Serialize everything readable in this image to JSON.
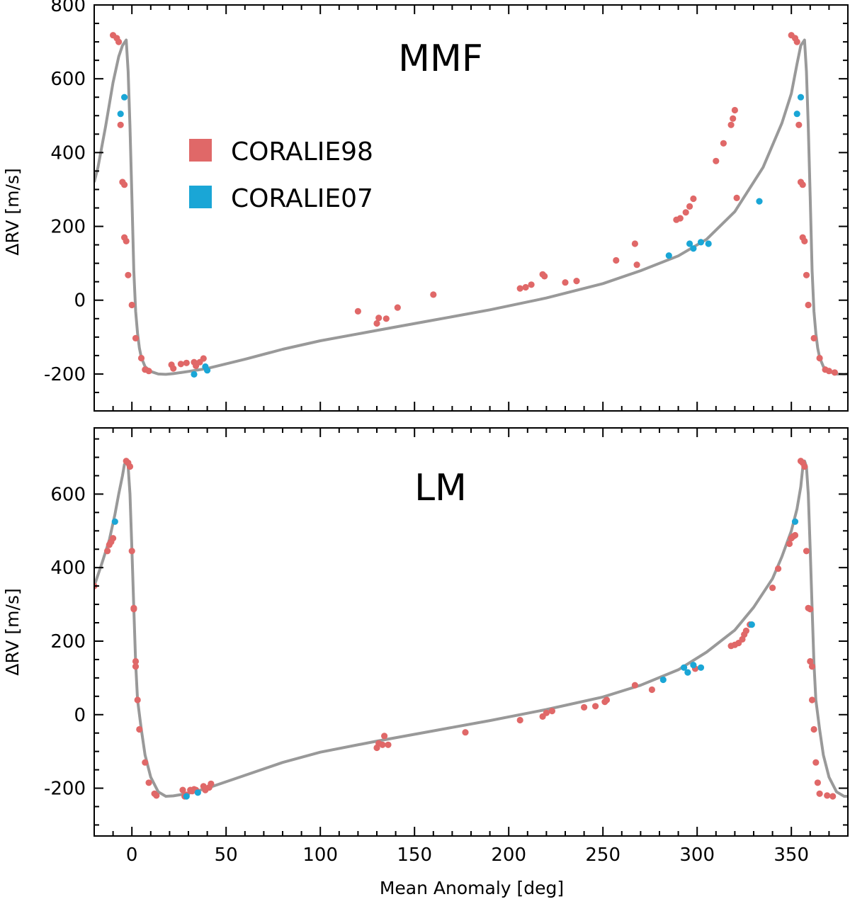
{
  "chart_data": [
    {
      "type": "scatter",
      "title": "MMF",
      "xlabel": "",
      "ylabel": "ΔRV [m/s]",
      "xlim": [
        -20,
        380
      ],
      "ylim": [
        -300,
        800
      ],
      "xticks": [
        0,
        50,
        100,
        150,
        200,
        250,
        300,
        350
      ],
      "yticks": [
        -200,
        0,
        200,
        400,
        600,
        800
      ],
      "yticklabels": [
        "-200",
        "0",
        "200",
        "400",
        "600",
        "800"
      ],
      "legend": {
        "placement": "upper-left",
        "entries": [
          {
            "name": "CORALIE98",
            "color": "#e06868"
          },
          {
            "name": "CORALIE07",
            "color": "#1aa6d6"
          }
        ]
      },
      "series": [
        {
          "name": "model",
          "kind": "line",
          "color": "#999999",
          "x": [
            -20,
            -18,
            -14,
            -10,
            -7,
            -5,
            -3,
            -2,
            -1,
            0,
            1,
            2,
            3,
            4,
            5,
            7,
            10,
            14,
            18,
            22,
            30,
            40,
            60,
            80,
            100,
            130,
            160,
            190,
            220,
            250,
            270,
            290,
            305,
            320,
            335,
            345,
            350,
            353,
            355,
            357,
            358,
            359,
            360,
            361,
            362,
            363,
            364,
            365,
            367,
            370,
            374,
            378,
            380
          ],
          "y": [
            320,
            360,
            470,
            590,
            660,
            690,
            705,
            620,
            470,
            280,
            80,
            -30,
            -90,
            -130,
            -155,
            -180,
            -193,
            -200,
            -201,
            -199,
            -193,
            -185,
            -160,
            -133,
            -110,
            -82,
            -54,
            -26,
            6,
            45,
            80,
            120,
            165,
            240,
            360,
            480,
            560,
            640,
            690,
            705,
            620,
            470,
            280,
            80,
            -30,
            -90,
            -130,
            -155,
            -180,
            -193,
            -200,
            -201,
            -200
          ]
        },
        {
          "name": "CORALIE98",
          "kind": "scatter",
          "color": "#e06868",
          "x": [
            -10,
            -8,
            -7,
            -6,
            -5,
            -4,
            -4,
            -3,
            -2,
            0,
            2,
            5,
            7,
            9,
            21,
            22,
            26,
            29,
            33,
            34,
            36,
            38,
            120,
            130,
            131,
            135,
            141,
            160,
            206,
            209,
            212,
            218,
            219,
            230,
            236,
            257,
            267,
            268,
            289,
            291,
            294,
            296,
            298,
            310,
            314,
            318,
            319,
            320,
            321,
            350,
            352,
            353,
            354,
            355,
            356,
            356,
            357,
            358,
            359,
            362,
            365,
            368,
            370,
            373
          ],
          "y": [
            718,
            710,
            700,
            475,
            320,
            313,
            170,
            160,
            68,
            -13,
            -103,
            -157,
            -188,
            -192,
            -175,
            -185,
            -173,
            -170,
            -168,
            -178,
            -168,
            -158,
            -30,
            -63,
            -48,
            -50,
            -20,
            15,
            32,
            35,
            42,
            70,
            65,
            48,
            52,
            108,
            153,
            96,
            218,
            222,
            238,
            254,
            275,
            377,
            425,
            475,
            492,
            515,
            277,
            718,
            710,
            700,
            475,
            320,
            313,
            170,
            160,
            68,
            -13,
            -103,
            -157,
            -188,
            -192,
            -196
          ]
        },
        {
          "name": "CORALIE07",
          "kind": "scatter",
          "color": "#1aa6d6",
          "x": [
            -6,
            -4,
            33,
            39,
            40,
            285,
            296,
            298,
            302,
            306,
            333,
            353,
            355
          ],
          "y": [
            505,
            550,
            -201,
            -180,
            -190,
            121,
            153,
            140,
            157,
            153,
            268,
            505,
            550
          ]
        }
      ]
    },
    {
      "type": "scatter",
      "title": "LM",
      "xlabel": "Mean Anomaly [deg]",
      "ylabel": "ΔRV [m/s]",
      "xlim": [
        -20,
        380
      ],
      "ylim": [
        -330,
        780
      ],
      "xticks": [
        0,
        50,
        100,
        150,
        200,
        250,
        300,
        350
      ],
      "xticklabels": [
        "0",
        "50",
        "100",
        "150",
        "200",
        "250",
        "300",
        "350"
      ],
      "yticks": [
        -200,
        0,
        200,
        400,
        600
      ],
      "yticklabels": [
        "-200",
        "0",
        "200",
        "400",
        "600"
      ],
      "series": [
        {
          "name": "model",
          "kind": "line",
          "color": "#999999",
          "x": [
            -20,
            -16,
            -12,
            -9,
            -7,
            -5,
            -4,
            -3,
            -2,
            -1,
            0,
            1,
            2,
            3,
            5,
            7,
            10,
            14,
            18,
            22,
            30,
            40,
            60,
            80,
            100,
            130,
            160,
            190,
            220,
            250,
            270,
            290,
            305,
            320,
            330,
            340,
            345,
            350,
            353,
            355,
            356,
            357,
            358,
            359,
            360,
            361,
            362,
            363,
            365,
            367,
            370,
            374,
            378,
            380
          ],
          "y": [
            350,
            410,
            475,
            545,
            600,
            650,
            680,
            690,
            675,
            600,
            450,
            290,
            140,
            40,
            -40,
            -110,
            -170,
            -210,
            -222,
            -221,
            -214,
            -200,
            -165,
            -130,
            -102,
            -72,
            -44,
            -16,
            14,
            48,
            80,
            122,
            170,
            230,
            292,
            370,
            430,
            500,
            560,
            620,
            670,
            690,
            675,
            600,
            450,
            290,
            140,
            40,
            -40,
            -110,
            -170,
            -210,
            -222,
            -222
          ]
        },
        {
          "name": "CORALIE98",
          "kind": "scatter",
          "color": "#e06868",
          "x": [
            -20,
            -13,
            -12,
            -11,
            -10,
            -3,
            -2,
            -1,
            0,
            1,
            1,
            2,
            2,
            3,
            4,
            7,
            9,
            12,
            13,
            27,
            28,
            29,
            31,
            32,
            33,
            34,
            38,
            39,
            41,
            42,
            130,
            131,
            133,
            134,
            136,
            177,
            206,
            218,
            220,
            223,
            240,
            246,
            251,
            252,
            267,
            276,
            299,
            318,
            320,
            322,
            324,
            325,
            326,
            328,
            340,
            343,
            349,
            350,
            351,
            352,
            355,
            356,
            357,
            358,
            359,
            360,
            360,
            361,
            361,
            362,
            363,
            364,
            365,
            369,
            372
          ],
          "y": [
            350,
            445,
            462,
            470,
            480,
            690,
            685,
            675,
            445,
            290,
            287,
            145,
            131,
            40,
            -40,
            -130,
            -185,
            -215,
            -220,
            -205,
            -222,
            -218,
            -205,
            -208,
            -203,
            -205,
            -195,
            -205,
            -198,
            -188,
            -90,
            -78,
            -82,
            -58,
            -82,
            -48,
            -15,
            -5,
            5,
            10,
            20,
            23,
            35,
            40,
            80,
            68,
            125,
            187,
            190,
            195,
            205,
            218,
            228,
            245,
            345,
            397,
            465,
            480,
            485,
            488,
            690,
            685,
            675,
            445,
            290,
            287,
            145,
            131,
            40,
            -40,
            -130,
            -185,
            -215,
            -220,
            -222
          ]
        },
        {
          "name": "CORALIE07",
          "kind": "scatter",
          "color": "#1aa6d6",
          "x": [
            -9,
            29,
            35,
            282,
            293,
            295,
            298,
            302,
            329,
            352
          ],
          "y": [
            525,
            -222,
            -212,
            95,
            128,
            115,
            135,
            128,
            245,
            525
          ]
        }
      ]
    }
  ]
}
